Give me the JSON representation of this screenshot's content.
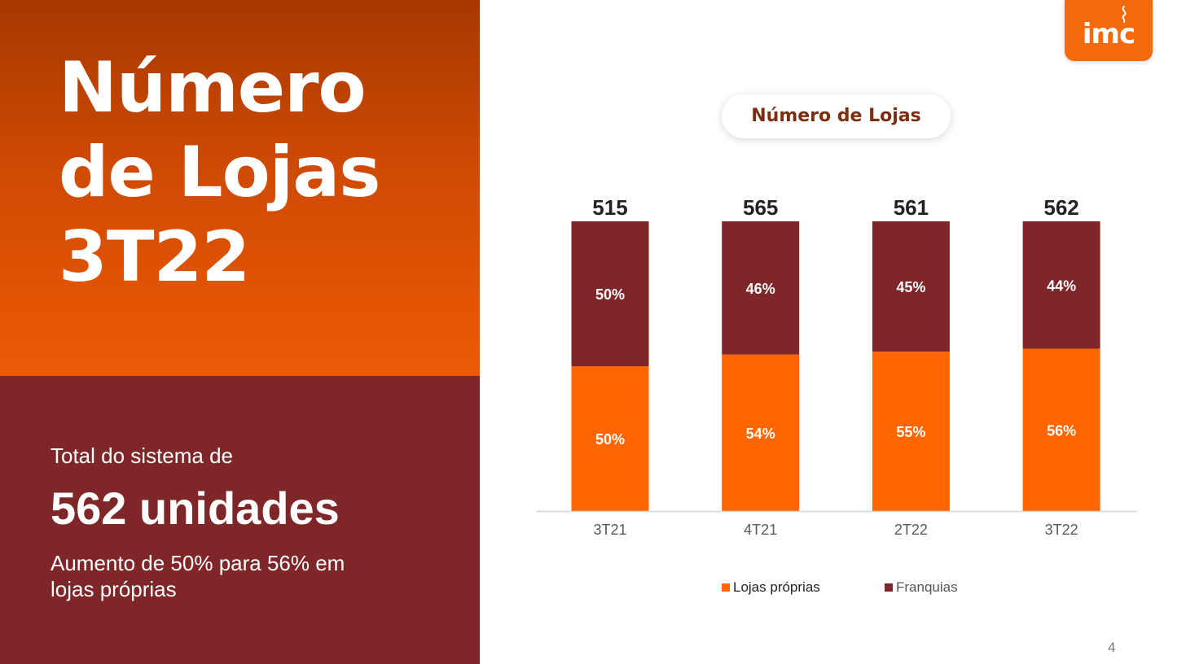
{
  "slide": {
    "title_lines": [
      "Número",
      "de Lojas",
      "3T22"
    ],
    "system_label": "Total do sistema de",
    "system_total": "562 unidades",
    "system_note": "Aumento de 50% para 56%   em lojas próprias",
    "page_number": "4"
  },
  "logo": {
    "text": "imc",
    "icon": "steam-icon"
  },
  "colors": {
    "accent_orange": "#ff6600",
    "franquias_maroon": "#7f2628",
    "bottom_panel": "#7f2628"
  },
  "chart_data": {
    "type": "bar",
    "stacked": true,
    "normalized": true,
    "title": "Número de Lojas",
    "categories": [
      "3T21",
      "4T21",
      "2T22",
      "3T22"
    ],
    "totals": [
      515,
      565,
      561,
      562
    ],
    "series": [
      {
        "name": "Lojas próprias",
        "color": "#ff6600",
        "values": [
          50,
          54,
          55,
          56
        ],
        "labels": [
          "50%",
          "54%",
          "55%",
          "56%"
        ]
      },
      {
        "name": "Franquias",
        "color": "#7f2628",
        "values": [
          50,
          46,
          45,
          44
        ],
        "labels": [
          "50%",
          "46%",
          "45%",
          "44%"
        ]
      }
    ],
    "ylim": [
      0,
      100
    ],
    "legend": "bottom",
    "grid": false
  }
}
